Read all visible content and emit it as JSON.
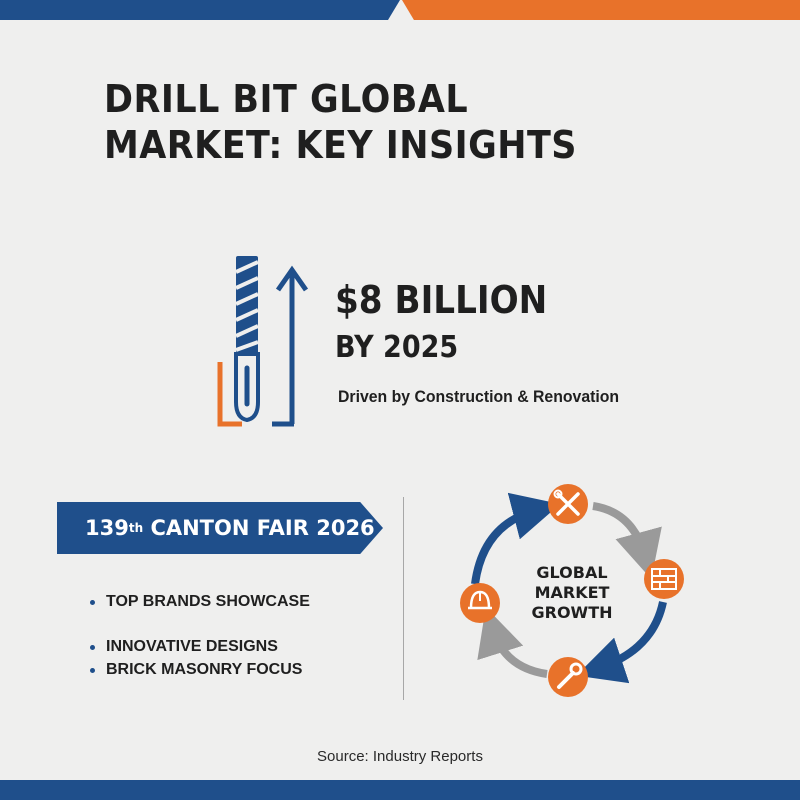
{
  "title_lines": [
    "DRILL BIT GLOBAL",
    "MARKET: KEY INSIGHTS"
  ],
  "stat": {
    "value": "$8 BILLION",
    "timeframe": "BY 2025",
    "note": "Driven by Construction & Renovation"
  },
  "event": {
    "number": "139",
    "ordinal": "th",
    "name": "CANTON FAIR 2026"
  },
  "highlights": [
    "TOP BRANDS SHOWCASE",
    "INNOVATIVE DESIGNS",
    "BRICK MASONRY FOCUS"
  ],
  "cycle": {
    "label_lines": [
      "GLOBAL",
      "MARKET",
      "GROWTH"
    ],
    "icons": [
      "tools-icon",
      "brick-wall-icon",
      "wrench-icon",
      "hard-hat-icon"
    ]
  },
  "source": "Source: Industry Reports",
  "colors": {
    "blue": "#1f4f8b",
    "orange": "#e8722a",
    "gray": "#9a9a9a",
    "background": "#efefee"
  }
}
